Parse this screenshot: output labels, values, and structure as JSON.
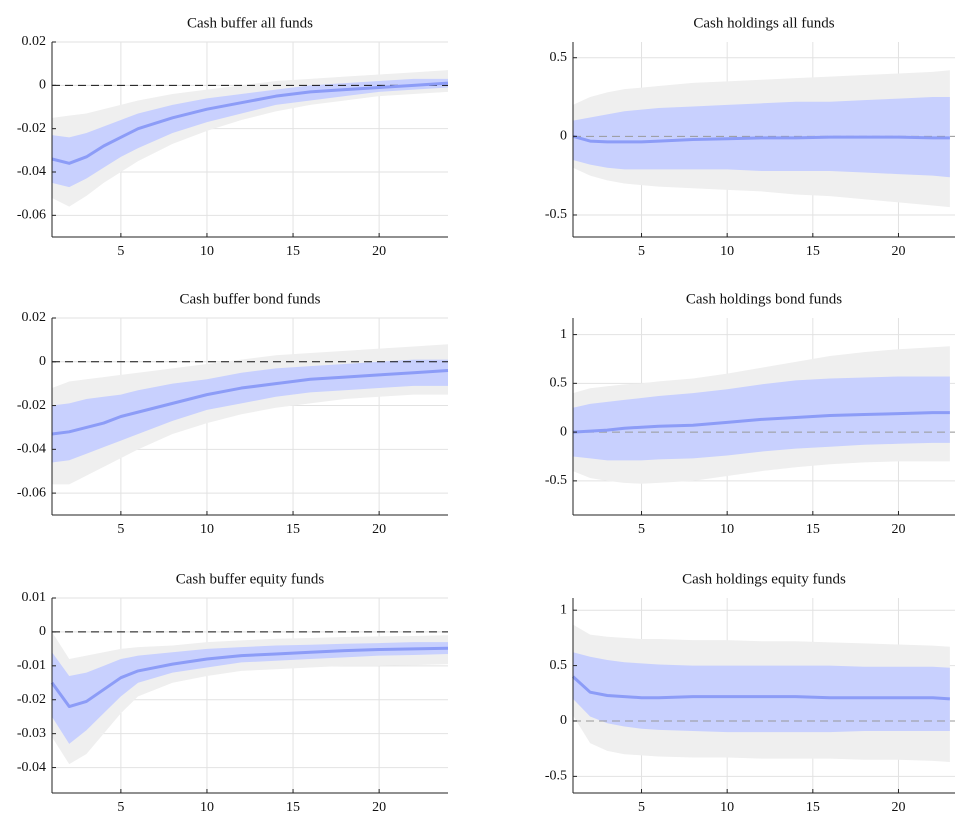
{
  "chart_data": [
    {
      "type": "line",
      "title": "Cash buffer all funds",
      "x": [
        1,
        2,
        3,
        4,
        5,
        6,
        8,
        10,
        12,
        14,
        16,
        18,
        20,
        22,
        24
      ],
      "values": [
        -0.034,
        -0.036,
        -0.033,
        -0.028,
        -0.024,
        -0.02,
        -0.015,
        -0.011,
        -0.008,
        -0.005,
        -0.003,
        -0.002,
        -0.001,
        0.0,
        0.001
      ],
      "color": "#8c9cf7",
      "bands": [
        {
          "color": "#efefef",
          "lower": [
            -0.052,
            -0.056,
            -0.051,
            -0.045,
            -0.04,
            -0.035,
            -0.027,
            -0.021,
            -0.016,
            -0.012,
            -0.009,
            -0.007,
            -0.005,
            -0.004,
            -0.003
          ],
          "upper": [
            -0.015,
            -0.014,
            -0.013,
            -0.011,
            -0.009,
            -0.007,
            -0.004,
            -0.002,
            0.0,
            0.002,
            0.003,
            0.004,
            0.005,
            0.006,
            0.007
          ]
        },
        {
          "color": "#c8d0fe",
          "lower": [
            -0.045,
            -0.047,
            -0.043,
            -0.038,
            -0.033,
            -0.029,
            -0.022,
            -0.017,
            -0.013,
            -0.009,
            -0.007,
            -0.005,
            -0.003,
            -0.002,
            -0.001
          ],
          "upper": [
            -0.023,
            -0.024,
            -0.022,
            -0.019,
            -0.016,
            -0.013,
            -0.009,
            -0.006,
            -0.004,
            -0.002,
            0.0,
            0.001,
            0.002,
            0.003,
            0.003
          ]
        }
      ],
      "hline": 0,
      "hline_color": "#111111",
      "xlim": [
        1,
        24
      ],
      "xticks": [
        5,
        10,
        15,
        20
      ],
      "ylim": [
        -0.07,
        0.02
      ],
      "yticks": [
        -0.06,
        -0.04,
        -0.02,
        0,
        0.02
      ],
      "grid": true
    },
    {
      "type": "line",
      "title": "Cash holdings all funds",
      "x": [
        1,
        2,
        3,
        4,
        5,
        6,
        8,
        10,
        12,
        14,
        16,
        18,
        20,
        22,
        23
      ],
      "values": [
        0.0,
        -0.03,
        -0.035,
        -0.035,
        -0.035,
        -0.03,
        -0.02,
        -0.015,
        -0.01,
        -0.01,
        -0.005,
        -0.005,
        -0.005,
        -0.01,
        -0.01
      ],
      "color": "#8c9cf7",
      "bands": [
        {
          "color": "#efefef",
          "lower": [
            -0.2,
            -0.25,
            -0.28,
            -0.3,
            -0.31,
            -0.32,
            -0.33,
            -0.34,
            -0.35,
            -0.37,
            -0.38,
            -0.4,
            -0.42,
            -0.44,
            -0.45
          ],
          "upper": [
            0.2,
            0.25,
            0.28,
            0.3,
            0.31,
            0.32,
            0.34,
            0.35,
            0.36,
            0.37,
            0.38,
            0.39,
            0.4,
            0.41,
            0.42
          ]
        },
        {
          "color": "#c8d0fe",
          "lower": [
            -0.15,
            -0.18,
            -0.2,
            -0.21,
            -0.21,
            -0.21,
            -0.21,
            -0.21,
            -0.22,
            -0.22,
            -0.22,
            -0.23,
            -0.24,
            -0.25,
            -0.26
          ],
          "upper": [
            0.1,
            0.12,
            0.14,
            0.16,
            0.17,
            0.18,
            0.19,
            0.2,
            0.21,
            0.22,
            0.22,
            0.23,
            0.24,
            0.25,
            0.25
          ]
        }
      ],
      "hline": 0,
      "hline_color": "#999999",
      "xlim": [
        1,
        23.3
      ],
      "xticks": [
        5,
        10,
        15,
        20
      ],
      "ylim": [
        -0.64,
        0.6
      ],
      "yticks": [
        -0.5,
        0,
        0.5
      ],
      "grid": true
    },
    {
      "type": "line",
      "title": "Cash buffer bond funds",
      "x": [
        1,
        2,
        3,
        4,
        5,
        6,
        8,
        10,
        12,
        14,
        16,
        18,
        20,
        22,
        24
      ],
      "values": [
        -0.033,
        -0.032,
        -0.03,
        -0.028,
        -0.025,
        -0.023,
        -0.019,
        -0.015,
        -0.012,
        -0.01,
        -0.008,
        -0.007,
        -0.006,
        -0.005,
        -0.004
      ],
      "color": "#8c9cf7",
      "bands": [
        {
          "color": "#efefef",
          "lower": [
            -0.056,
            -0.056,
            -0.052,
            -0.048,
            -0.044,
            -0.04,
            -0.033,
            -0.028,
            -0.024,
            -0.021,
            -0.019,
            -0.017,
            -0.016,
            -0.015,
            -0.015
          ],
          "upper": [
            -0.012,
            -0.009,
            -0.008,
            -0.007,
            -0.006,
            -0.005,
            -0.003,
            -0.001,
            0.001,
            0.003,
            0.004,
            0.005,
            0.006,
            0.007,
            0.008
          ]
        },
        {
          "color": "#c8d0fe",
          "lower": [
            -0.046,
            -0.045,
            -0.042,
            -0.039,
            -0.036,
            -0.033,
            -0.027,
            -0.022,
            -0.019,
            -0.016,
            -0.014,
            -0.013,
            -0.012,
            -0.011,
            -0.011
          ],
          "upper": [
            -0.02,
            -0.019,
            -0.017,
            -0.016,
            -0.015,
            -0.013,
            -0.01,
            -0.008,
            -0.005,
            -0.003,
            -0.002,
            -0.001,
            0.0,
            0.001,
            0.001
          ]
        }
      ],
      "hline": 0,
      "hline_color": "#111111",
      "xlim": [
        1,
        24
      ],
      "xticks": [
        5,
        10,
        15,
        20
      ],
      "ylim": [
        -0.07,
        0.02
      ],
      "yticks": [
        -0.06,
        -0.04,
        -0.02,
        0,
        0.02
      ],
      "grid": true
    },
    {
      "type": "line",
      "title": "Cash holdings bond funds",
      "x": [
        1,
        2,
        3,
        4,
        5,
        6,
        8,
        10,
        12,
        14,
        16,
        18,
        20,
        22,
        23
      ],
      "values": [
        0.0,
        0.01,
        0.02,
        0.04,
        0.05,
        0.06,
        0.07,
        0.1,
        0.13,
        0.15,
        0.17,
        0.18,
        0.19,
        0.2,
        0.2
      ],
      "color": "#8c9cf7",
      "bands": [
        {
          "color": "#efefef",
          "lower": [
            -0.4,
            -0.47,
            -0.5,
            -0.52,
            -0.53,
            -0.52,
            -0.5,
            -0.45,
            -0.4,
            -0.36,
            -0.33,
            -0.31,
            -0.3,
            -0.3,
            -0.3
          ],
          "upper": [
            0.4,
            0.45,
            0.47,
            0.49,
            0.5,
            0.52,
            0.55,
            0.6,
            0.66,
            0.72,
            0.78,
            0.82,
            0.85,
            0.87,
            0.88
          ]
        },
        {
          "color": "#c8d0fe",
          "lower": [
            -0.25,
            -0.27,
            -0.29,
            -0.29,
            -0.29,
            -0.28,
            -0.27,
            -0.24,
            -0.2,
            -0.17,
            -0.15,
            -0.13,
            -0.12,
            -0.11,
            -0.11
          ],
          "upper": [
            0.25,
            0.29,
            0.31,
            0.33,
            0.35,
            0.37,
            0.4,
            0.44,
            0.49,
            0.53,
            0.55,
            0.56,
            0.57,
            0.57,
            0.57
          ]
        }
      ],
      "hline": 0,
      "hline_color": "#999999",
      "xlim": [
        1,
        23.3
      ],
      "xticks": [
        5,
        10,
        15,
        20
      ],
      "ylim": [
        -0.85,
        1.17
      ],
      "yticks": [
        -0.5,
        0,
        0.5,
        1
      ],
      "grid": true
    },
    {
      "type": "line",
      "title": "Cash buffer equity funds",
      "x": [
        1,
        2,
        3,
        4,
        5,
        6,
        8,
        10,
        12,
        14,
        16,
        18,
        20,
        22,
        24
      ],
      "values": [
        -0.015,
        -0.022,
        -0.0205,
        -0.017,
        -0.0135,
        -0.0115,
        -0.0095,
        -0.008,
        -0.007,
        -0.0065,
        -0.006,
        -0.0055,
        -0.0052,
        -0.005,
        -0.0048
      ],
      "color": "#8c9cf7",
      "bands": [
        {
          "color": "#efefef",
          "lower": [
            -0.031,
            -0.039,
            -0.036,
            -0.03,
            -0.024,
            -0.019,
            -0.015,
            -0.013,
            -0.0115,
            -0.011,
            -0.0105,
            -0.01,
            -0.01,
            -0.0098,
            -0.0095
          ],
          "upper": [
            0.0,
            -0.008,
            -0.007,
            -0.006,
            -0.005,
            -0.0045,
            -0.004,
            -0.003,
            -0.0025,
            -0.002,
            -0.0018,
            -0.0015,
            -0.0013,
            -0.0012,
            -0.001
          ]
        },
        {
          "color": "#c8d0fe",
          "lower": [
            -0.025,
            -0.033,
            -0.029,
            -0.024,
            -0.019,
            -0.015,
            -0.012,
            -0.0105,
            -0.009,
            -0.0085,
            -0.008,
            -0.0075,
            -0.007,
            -0.0068,
            -0.0065
          ],
          "upper": [
            -0.006,
            -0.013,
            -0.012,
            -0.01,
            -0.008,
            -0.007,
            -0.006,
            -0.005,
            -0.0045,
            -0.004,
            -0.0038,
            -0.0035,
            -0.0033,
            -0.003,
            -0.003
          ]
        }
      ],
      "hline": 0,
      "hline_color": "#111111",
      "xlim": [
        1,
        24
      ],
      "xticks": [
        5,
        10,
        15,
        20
      ],
      "ylim": [
        -0.0475,
        0.01
      ],
      "yticks": [
        -0.04,
        -0.03,
        -0.02,
        -0.01,
        0,
        0.01
      ],
      "grid": true
    },
    {
      "type": "line",
      "title": "Cash holdings equity funds",
      "x": [
        1,
        2,
        3,
        4,
        5,
        6,
        8,
        10,
        12,
        14,
        16,
        18,
        20,
        22,
        23
      ],
      "values": [
        0.4,
        0.26,
        0.23,
        0.22,
        0.21,
        0.21,
        0.22,
        0.22,
        0.22,
        0.22,
        0.21,
        0.21,
        0.21,
        0.21,
        0.2
      ],
      "color": "#8c9cf7",
      "bands": [
        {
          "color": "#efefef",
          "lower": [
            0.05,
            -0.2,
            -0.27,
            -0.3,
            -0.31,
            -0.32,
            -0.33,
            -0.33,
            -0.34,
            -0.34,
            -0.34,
            -0.35,
            -0.35,
            -0.36,
            -0.37
          ],
          "upper": [
            0.87,
            0.78,
            0.76,
            0.75,
            0.74,
            0.74,
            0.73,
            0.73,
            0.72,
            0.72,
            0.71,
            0.7,
            0.69,
            0.68,
            0.67
          ]
        },
        {
          "color": "#c8d0fe",
          "lower": [
            0.2,
            0.04,
            -0.02,
            -0.05,
            -0.07,
            -0.08,
            -0.09,
            -0.1,
            -0.1,
            -0.1,
            -0.1,
            -0.09,
            -0.09,
            -0.09,
            -0.09
          ],
          "upper": [
            0.62,
            0.58,
            0.55,
            0.53,
            0.52,
            0.51,
            0.5,
            0.5,
            0.5,
            0.5,
            0.5,
            0.49,
            0.49,
            0.49,
            0.48
          ]
        }
      ],
      "hline": 0,
      "hline_color": "#999999",
      "xlim": [
        1,
        23.3
      ],
      "xticks": [
        5,
        10,
        15,
        20
      ],
      "ylim": [
        -0.65,
        1.11
      ],
      "yticks": [
        -0.5,
        0,
        0.5,
        1
      ],
      "grid": true
    }
  ]
}
